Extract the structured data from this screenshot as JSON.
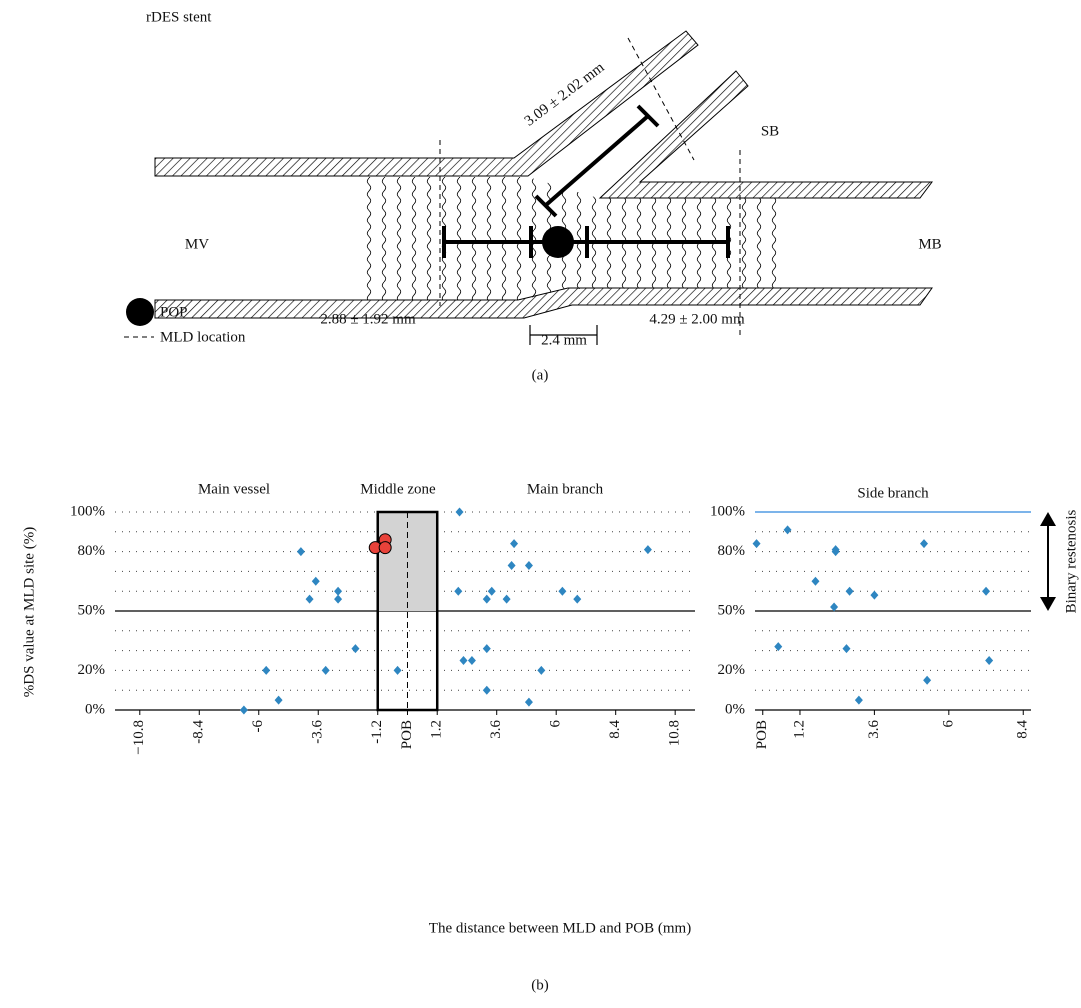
{
  "diagram": {
    "title": "rDES stent",
    "labels": {
      "sb_length": "3.09 ± 2.02 mm",
      "sb": "SB",
      "mv": "MV",
      "mb": "MB",
      "mv_length": "2.88 ± 1.92 mm",
      "middle_length": "2.4 mm",
      "mb_length": "4.29 ± 2.00 mm"
    },
    "legend": [
      "POP",
      "MLD location"
    ],
    "caption": "(a)"
  },
  "chart_data": [
    {
      "type": "scatter",
      "ylabel": "%DS value at MLD site (%)",
      "xlabel": "The distance between MLD and POB (mm)",
      "zones": [
        {
          "label": "Main vessel"
        },
        {
          "label": "Middle zone",
          "x": [
            -1.2,
            1.2
          ]
        },
        {
          "label": "Main branch"
        }
      ],
      "pob_line": 0,
      "threshold": 50,
      "xlim": [
        -11.8,
        11.6
      ],
      "ylim": [
        0,
        100
      ],
      "xticks": [
        {
          "value": -10.8,
          "label": "−10.8"
        },
        -8.4,
        -6,
        -3.6,
        -1.2,
        {
          "value": 0,
          "label": "POB"
        },
        1.2,
        3.6,
        6,
        8.4,
        10.8
      ],
      "yticks": [
        {
          "value": 0,
          "label": "0%"
        },
        {
          "value": 20,
          "label": "20%"
        },
        {
          "value": 50,
          "label": "50%"
        },
        {
          "value": 80,
          "label": "80%"
        },
        {
          "value": 100,
          "label": "100%"
        }
      ],
      "minor_yticks": [
        10,
        30,
        40,
        60,
        70,
        90
      ],
      "grid": true,
      "series": [
        {
          "color": "#2e86c1",
          "marker": "diamond",
          "x": [
            -6.6,
            -5.2,
            -5.7,
            -3.3,
            -2.1,
            -4.3,
            -3.7,
            -3.95,
            -2.8,
            -2.8,
            -0.4,
            2.1,
            2.05,
            4.3,
            4.2,
            4.9,
            3.4,
            3.2,
            4.0,
            6.25,
            6.85,
            9.7,
            3.2,
            2.26,
            2.6,
            5.4,
            3.2,
            4.9
          ],
          "values": [
            0,
            5,
            20,
            20,
            31,
            80,
            65,
            56,
            60,
            56,
            20,
            100,
            60,
            84,
            73,
            73,
            60,
            56,
            56,
            60,
            56,
            81,
            31,
            25,
            25,
            20,
            10,
            4
          ]
        },
        {
          "color": "#e8423a",
          "marker": "circle",
          "x": [
            -1.3,
            -0.9,
            -0.9
          ],
          "values": [
            82,
            86,
            82
          ]
        }
      ]
    },
    {
      "type": "scatter",
      "title": "Side branch",
      "top_line_color": "#2e86de",
      "threshold": 50,
      "xlim": [
        -0.25,
        8.65
      ],
      "ylim": [
        0,
        100
      ],
      "xticks": [
        {
          "value": 0,
          "label": "POB"
        },
        1.2,
        3.6,
        6,
        8.4
      ],
      "yticks": [
        {
          "value": 0,
          "label": "0%"
        },
        {
          "value": 20,
          "label": "20%"
        },
        {
          "value": 50,
          "label": "50%"
        },
        {
          "value": 80,
          "label": "80%"
        },
        {
          "value": 100,
          "label": "100%"
        }
      ],
      "minor_yticks": [
        10,
        30,
        40,
        60,
        70,
        90
      ],
      "grid": true,
      "annotations": [
        {
          "text": "Binary restenosis",
          "y": [
            50,
            100
          ]
        }
      ],
      "series": [
        {
          "color": "#2e86c1",
          "marker": "diamond",
          "x": [
            -0.2,
            0.8,
            1.7,
            2.35,
            2.35,
            2.3,
            2.8,
            2.7,
            3.6,
            5.2,
            7.2,
            0.5,
            7.3,
            5.3,
            3.1
          ],
          "values": [
            84,
            91,
            65,
            81,
            80,
            52,
            60,
            31,
            58,
            84,
            60,
            32,
            25,
            15,
            5
          ]
        }
      ]
    }
  ],
  "panel_b": {
    "caption": "(b)"
  }
}
